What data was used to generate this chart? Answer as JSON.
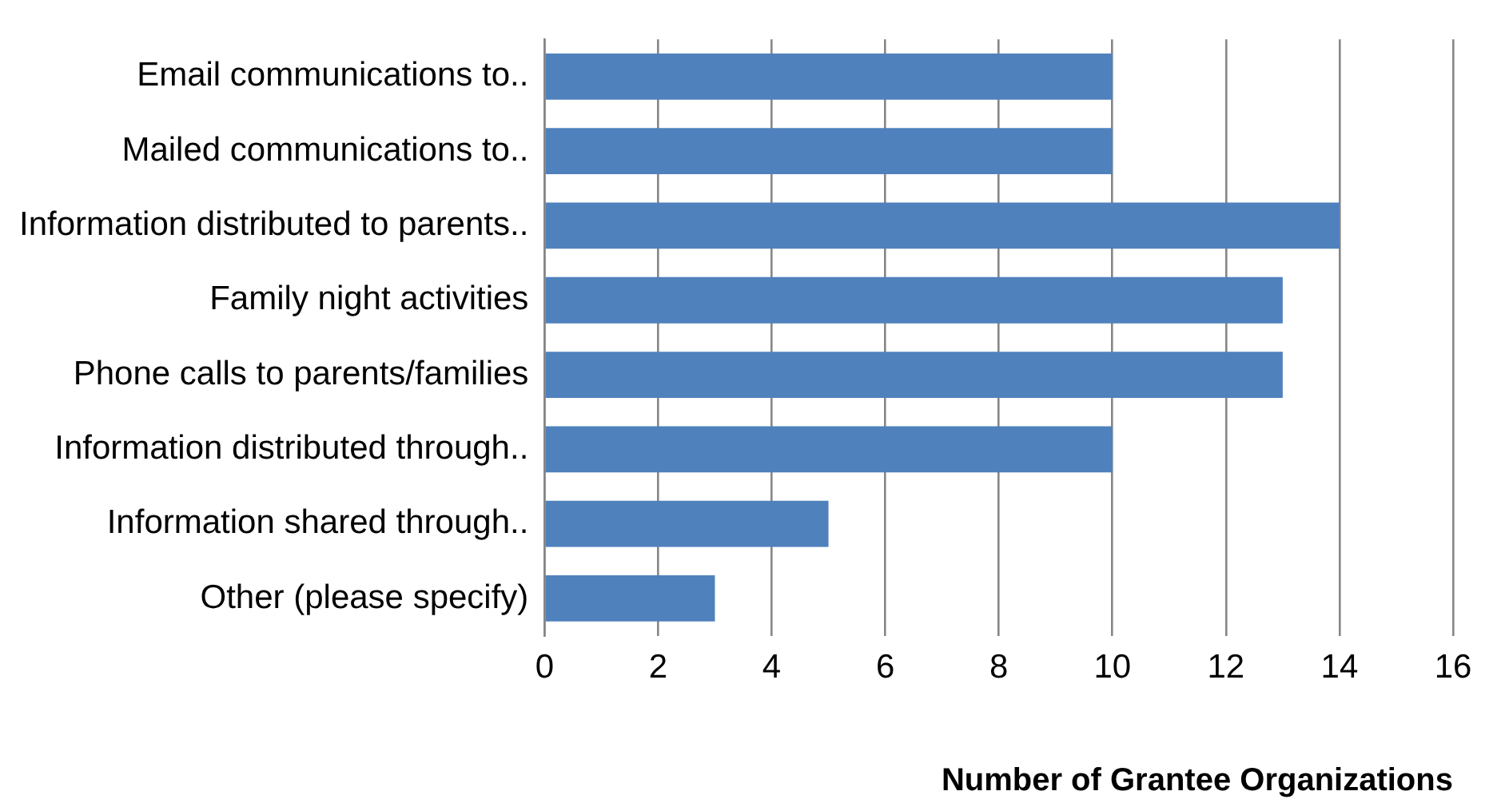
{
  "chart_data": {
    "type": "bar",
    "orientation": "horizontal",
    "categories": [
      "Email communications to..",
      "Mailed communications to..",
      "Information distributed to parents..",
      "Family night activities",
      "Phone calls to parents/families",
      "Information distributed through..",
      "Information shared through..",
      "Other (please specify)"
    ],
    "values": [
      10,
      10,
      14,
      13,
      13,
      10,
      5,
      3
    ],
    "color": "#4f81bd",
    "xlabel": "Number of Grantee Organizations",
    "xlim": [
      0,
      16
    ],
    "xticks": [
      0,
      2,
      4,
      6,
      8,
      10,
      12,
      14,
      16
    ],
    "grid": "x",
    "legend": false
  }
}
